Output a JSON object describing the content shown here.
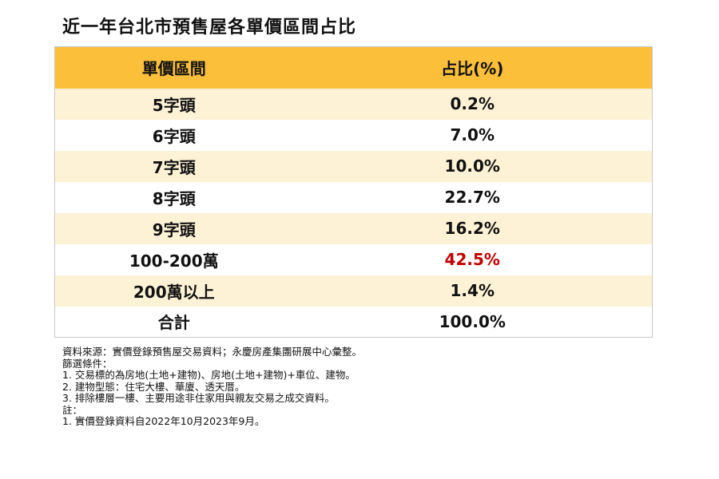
{
  "title": "近一年台北市預售屋各單價區間占比",
  "table": {
    "headers": [
      "單價區間",
      "占比(%)"
    ],
    "rows": [
      {
        "range": "5字頭",
        "pct": "0.2%"
      },
      {
        "range": "6字頭",
        "pct": "7.0%"
      },
      {
        "range": "7字頭",
        "pct": "10.0%"
      },
      {
        "range": "8字頭",
        "pct": "22.7%"
      },
      {
        "range": "9字頭",
        "pct": "16.2%"
      },
      {
        "range": "100-200萬",
        "pct": "42.5%"
      },
      {
        "range": "200萬以上",
        "pct": "1.4%"
      },
      {
        "range": "合計",
        "pct": "100.0%"
      }
    ]
  },
  "colors": {
    "header_bg": "#fbbf3a",
    "odd_row_bg": "#fdf2d6",
    "even_row_bg": "#ffffff",
    "highlight_text": "#c00000"
  },
  "notes": [
    "資料來源：實價登錄預售屋交易資料；永慶房產集團研展中心彙整。",
    "篩選條件：",
    "1. 交易標的為房地(土地+建物)、房地(土地+建物)+車位、建物。",
    "2. 建物型態：住宅大樓、華廈、透天厝。",
    "3. 排除樓層一樓、主要用途非住家用與親友交易之成交資料。",
    "註：",
    "1. 實價登錄資料自2022年10月2023年9月。"
  ]
}
